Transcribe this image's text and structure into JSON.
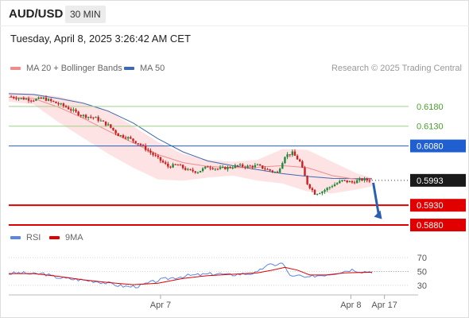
{
  "header": {
    "pair": "AUD/USD",
    "timeframe": "30 MIN",
    "timestamp": "Tuesday, April 8, 2025 3:26:42 AM CET"
  },
  "legend": {
    "ma20": "MA 20 + Bollinger Bands",
    "ma50": "MA 50",
    "rsi": "RSI",
    "ma9": "9MA"
  },
  "credit": "Research © 2025 Trading Central",
  "colors": {
    "ma20": "#f08c8c",
    "band_fill": "#fde3e3",
    "ma50": "#3d6ab0",
    "candle_up": "#1f8a3a",
    "candle_down": "#cc1f1f",
    "resistance": "#9fd28a",
    "pivot": "#1f5fd0",
    "support": "#e00000",
    "rsi": "#5b86e5",
    "rsi_ma": "#e00000"
  },
  "chart_data": [
    {
      "type": "candlestick",
      "title": "AUD/USD 30 MIN",
      "ylim": [
        0.5862,
        0.6248
      ],
      "current_price": 0.5993,
      "levels": [
        {
          "value": 0.618,
          "label": "0.6180",
          "kind": "resistance"
        },
        {
          "value": 0.613,
          "label": "0.6130",
          "kind": "resistance"
        },
        {
          "value": 0.608,
          "label": "0.6080",
          "kind": "pivot"
        },
        {
          "value": 0.593,
          "label": "0.5930",
          "kind": "support"
        },
        {
          "value": 0.588,
          "label": "0.5880",
          "kind": "support"
        }
      ],
      "close_path": [
        [
          0,
          0.6205
        ],
        [
          10,
          0.62
        ],
        [
          20,
          0.6197
        ],
        [
          28,
          0.62
        ],
        [
          35,
          0.6192
        ],
        [
          45,
          0.618
        ],
        [
          58,
          0.6158
        ],
        [
          70,
          0.615
        ],
        [
          80,
          0.6132
        ],
        [
          88,
          0.6108
        ],
        [
          95,
          0.6102
        ],
        [
          105,
          0.6085
        ],
        [
          112,
          0.6068
        ],
        [
          120,
          0.6048
        ],
        [
          128,
          0.6028
        ],
        [
          136,
          0.6032
        ],
        [
          144,
          0.6018
        ],
        [
          152,
          0.6015
        ],
        [
          160,
          0.6028
        ],
        [
          168,
          0.6022
        ],
        [
          176,
          0.6025
        ],
        [
          184,
          0.603
        ],
        [
          192,
          0.6028
        ],
        [
          200,
          0.603
        ],
        [
          208,
          0.602
        ],
        [
          216,
          0.6012
        ],
        [
          222,
          0.6055
        ],
        [
          228,
          0.6062
        ],
        [
          234,
          0.604
        ],
        [
          240,
          0.5985
        ],
        [
          246,
          0.596
        ],
        [
          252,
          0.5965
        ],
        [
          260,
          0.598
        ],
        [
          268,
          0.5992
        ],
        [
          276,
          0.5988
        ],
        [
          284,
          0.5995
        ],
        [
          292,
          0.5992
        ]
      ],
      "ma20_path": [
        [
          0,
          0.6203
        ],
        [
          20,
          0.62
        ],
        [
          40,
          0.6178
        ],
        [
          60,
          0.615
        ],
        [
          80,
          0.6118
        ],
        [
          100,
          0.6088
        ],
        [
          120,
          0.6058
        ],
        [
          140,
          0.6038
        ],
        [
          160,
          0.6028
        ],
        [
          180,
          0.6025
        ],
        [
          200,
          0.6026
        ],
        [
          220,
          0.603
        ],
        [
          240,
          0.6025
        ],
        [
          260,
          0.6005
        ],
        [
          280,
          0.5995
        ],
        [
          292,
          0.5995
        ]
      ],
      "band_upper": [
        [
          0,
          0.6215
        ],
        [
          20,
          0.6212
        ],
        [
          40,
          0.6205
        ],
        [
          60,
          0.619
        ],
        [
          80,
          0.617
        ],
        [
          100,
          0.613
        ],
        [
          120,
          0.609
        ],
        [
          140,
          0.606
        ],
        [
          160,
          0.6045
        ],
        [
          180,
          0.604
        ],
        [
          200,
          0.6045
        ],
        [
          220,
          0.6072
        ],
        [
          240,
          0.607
        ],
        [
          260,
          0.604
        ],
        [
          280,
          0.601
        ],
        [
          292,
          0.6
        ]
      ],
      "band_lower": [
        [
          0,
          0.6192
        ],
        [
          20,
          0.6185
        ],
        [
          40,
          0.614
        ],
        [
          60,
          0.61
        ],
        [
          80,
          0.606
        ],
        [
          100,
          0.6025
        ],
        [
          120,
          0.5995
        ],
        [
          140,
          0.5992
        ],
        [
          160,
          0.6
        ],
        [
          180,
          0.6005
        ],
        [
          200,
          0.5992
        ],
        [
          220,
          0.5985
        ],
        [
          240,
          0.5965
        ],
        [
          260,
          0.596
        ],
        [
          280,
          0.597
        ],
        [
          292,
          0.5978
        ]
      ],
      "ma50_path": [
        [
          0,
          0.6212
        ],
        [
          20,
          0.621
        ],
        [
          40,
          0.62
        ],
        [
          60,
          0.6188
        ],
        [
          80,
          0.6168
        ],
        [
          100,
          0.6138
        ],
        [
          120,
          0.6098
        ],
        [
          140,
          0.6065
        ],
        [
          160,
          0.6042
        ],
        [
          180,
          0.603
        ],
        [
          200,
          0.602
        ],
        [
          220,
          0.601
        ],
        [
          240,
          0.6003
        ],
        [
          260,
          0.5998
        ],
        [
          280,
          0.5997
        ],
        [
          292,
          0.5997
        ]
      ],
      "forecast": {
        "to_x": 300,
        "to_value": 0.5895
      }
    },
    {
      "type": "line",
      "title": "RSI",
      "ylim": [
        15,
        85
      ],
      "yticks": [
        70,
        50,
        30
      ],
      "series": [
        {
          "name": "RSI",
          "values": [
            [
              0,
              47
            ],
            [
              10,
              48
            ],
            [
              20,
              46
            ],
            [
              28,
              47
            ],
            [
              35,
              43
            ],
            [
              45,
              40
            ],
            [
              58,
              38
            ],
            [
              70,
              36
            ],
            [
              80,
              33
            ],
            [
              88,
              30
            ],
            [
              95,
              28
            ],
            [
              105,
              29
            ],
            [
              112,
              33
            ],
            [
              120,
              37
            ],
            [
              128,
              40
            ],
            [
              136,
              42
            ],
            [
              144,
              44
            ],
            [
              152,
              45
            ],
            [
              160,
              46
            ],
            [
              168,
              47
            ],
            [
              176,
              45
            ],
            [
              184,
              46
            ],
            [
              192,
              47
            ],
            [
              200,
              48
            ],
            [
              206,
              58
            ],
            [
              214,
              60
            ],
            [
              220,
              62
            ],
            [
              224,
              50
            ],
            [
              228,
              42
            ],
            [
              234,
              44
            ],
            [
              240,
              40
            ],
            [
              246,
              44
            ],
            [
              252,
              45
            ],
            [
              260,
              47
            ],
            [
              268,
              50
            ],
            [
              276,
              53
            ],
            [
              284,
              50
            ],
            [
              292,
              50
            ]
          ]
        },
        {
          "name": "9MA",
          "values": [
            [
              0,
              47
            ],
            [
              20,
              47
            ],
            [
              40,
              43
            ],
            [
              60,
              38
            ],
            [
              80,
              34
            ],
            [
              100,
              31
            ],
            [
              120,
              33
            ],
            [
              140,
              40
            ],
            [
              160,
              44
            ],
            [
              180,
              46
            ],
            [
              200,
              48
            ],
            [
              212,
              52
            ],
            [
              222,
              56
            ],
            [
              232,
              52
            ],
            [
              242,
              45
            ],
            [
              255,
              45
            ],
            [
              270,
              48
            ],
            [
              292,
              49
            ]
          ]
        }
      ]
    }
  ],
  "x_axis": {
    "ticks": [
      {
        "x": 122,
        "label": "Apr 7"
      },
      {
        "x": 275,
        "label": "Apr 8"
      },
      {
        "x": 302,
        "label": "Apr 17"
      }
    ]
  }
}
